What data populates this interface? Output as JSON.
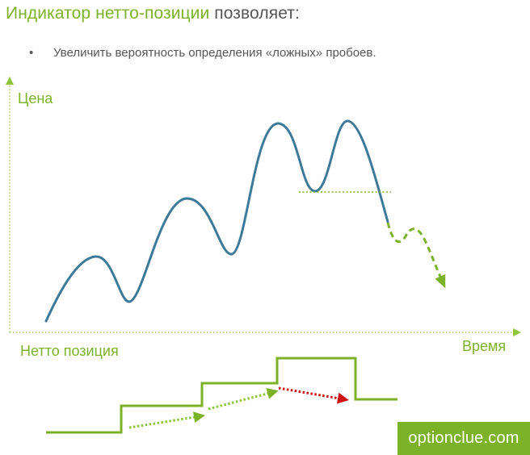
{
  "title": {
    "highlight": "Индикатор нетто-позиции",
    "rest": "позволяет:"
  },
  "bullets": [
    "Увеличить вероятность определения «ложных» пробоев."
  ],
  "labels": {
    "price_axis": "Цена",
    "time_axis": "Время",
    "net_position": "Нетто позиция"
  },
  "brand": "optionclue.com",
  "colors": {
    "accent": "#7cb228",
    "price_line": "#3d7a99",
    "dotted_axis": "#8dc43a",
    "warning_arrow": "#cc1111"
  }
}
